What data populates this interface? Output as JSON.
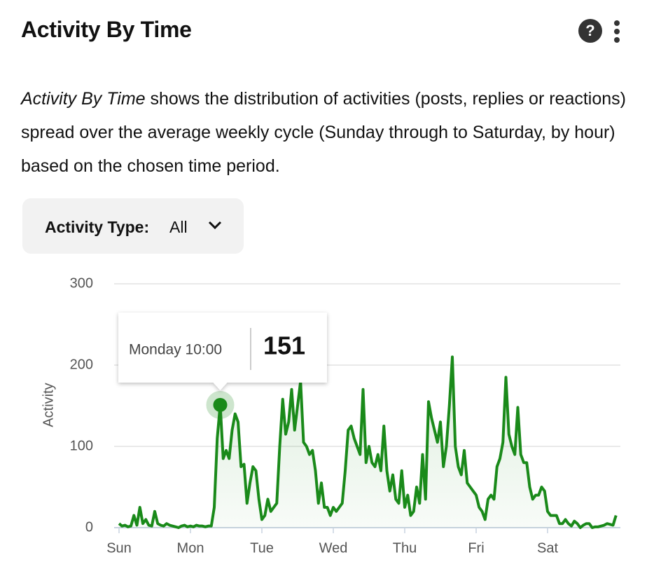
{
  "header": {
    "title": "Activity By Time",
    "help_icon": "?"
  },
  "description": {
    "emphasis": "Activity By Time",
    "text": "shows the distribution of activities (posts, replies or reactions) spread over the average weekly cycle (Sunday through to Saturday, by hour) based on the chosen time period."
  },
  "filter": {
    "label": "Activity Type:",
    "value": "All"
  },
  "chart_data": {
    "type": "line",
    "y_label": "Activity",
    "x": [
      0,
      1,
      2,
      3,
      4,
      5,
      6,
      7,
      8,
      9,
      10,
      11,
      12,
      13,
      14,
      15,
      16,
      17,
      18,
      19,
      20,
      21,
      22,
      23,
      24,
      25,
      26,
      27,
      28,
      29,
      30,
      31,
      32,
      33,
      34,
      35,
      36,
      37,
      38,
      39,
      40,
      41,
      42,
      43,
      44,
      45,
      46,
      47,
      48,
      49,
      50,
      51,
      52,
      53,
      54,
      55,
      56,
      57,
      58,
      59,
      60,
      61,
      62,
      63,
      64,
      65,
      66,
      67,
      68,
      69,
      70,
      71,
      72,
      73,
      74,
      75,
      76,
      77,
      78,
      79,
      80,
      81,
      82,
      83,
      84,
      85,
      86,
      87,
      88,
      89,
      90,
      91,
      92,
      93,
      94,
      95,
      96,
      97,
      98,
      99,
      100,
      101,
      102,
      103,
      104,
      105,
      106,
      107,
      108,
      109,
      110,
      111,
      112,
      113,
      114,
      115,
      116,
      117,
      118,
      119,
      120,
      121,
      122,
      123,
      124,
      125,
      126,
      127,
      128,
      129,
      130,
      131,
      132,
      133,
      134,
      135,
      136,
      137,
      138,
      139,
      140,
      141,
      142,
      143,
      144,
      145,
      146,
      147,
      148,
      149,
      150,
      151,
      152,
      153,
      154,
      155,
      156,
      157,
      158,
      159,
      160,
      161,
      162,
      163,
      164,
      165,
      166,
      167
    ],
    "series": [
      {
        "name": "Activity",
        "color": "#1a8a1a",
        "values": [
          5,
          2,
          3,
          1,
          2,
          15,
          3,
          25,
          5,
          10,
          3,
          2,
          20,
          5,
          3,
          2,
          5,
          3,
          2,
          1,
          0,
          2,
          3,
          1,
          2,
          1,
          3,
          2,
          2,
          1,
          2,
          2,
          25,
          110,
          151,
          85,
          95,
          85,
          120,
          140,
          130,
          75,
          78,
          30,
          55,
          75,
          70,
          35,
          10,
          15,
          35,
          20,
          25,
          30,
          100,
          158,
          115,
          130,
          170,
          120,
          150,
          180,
          105,
          100,
          90,
          95,
          70,
          30,
          55,
          25,
          25,
          15,
          25,
          20,
          25,
          30,
          70,
          120,
          125,
          110,
          100,
          90,
          170,
          80,
          100,
          80,
          75,
          90,
          70,
          125,
          70,
          45,
          65,
          35,
          30,
          70,
          25,
          40,
          15,
          20,
          50,
          30,
          90,
          35,
          155,
          135,
          120,
          105,
          130,
          75,
          100,
          150,
          210,
          100,
          75,
          65,
          95,
          55,
          50,
          45,
          40,
          25,
          20,
          10,
          35,
          40,
          35,
          75,
          85,
          105,
          185,
          115,
          100,
          90,
          148,
          90,
          80,
          80,
          50,
          35,
          40,
          40,
          50,
          45,
          20,
          15,
          15,
          15,
          5,
          5,
          10,
          5,
          2,
          8,
          5,
          0,
          3,
          5,
          5,
          0,
          1,
          1,
          2,
          3,
          5,
          4,
          3,
          15
        ]
      }
    ],
    "xlim": [
      0,
      168
    ],
    "xticks": [
      {
        "value": 0,
        "label": "Sun"
      },
      {
        "value": 24,
        "label": "Mon"
      },
      {
        "value": 48,
        "label": "Tue"
      },
      {
        "value": 72,
        "label": "Wed"
      },
      {
        "value": 96,
        "label": "Thu"
      },
      {
        "value": 120,
        "label": "Fri"
      },
      {
        "value": 144,
        "label": "Sat"
      }
    ],
    "ylim": [
      0,
      300
    ],
    "yticks": [
      0,
      100,
      200,
      300
    ],
    "grid": true,
    "tooltip": {
      "label": "Monday 10:00",
      "x": 34,
      "value": 151
    }
  }
}
